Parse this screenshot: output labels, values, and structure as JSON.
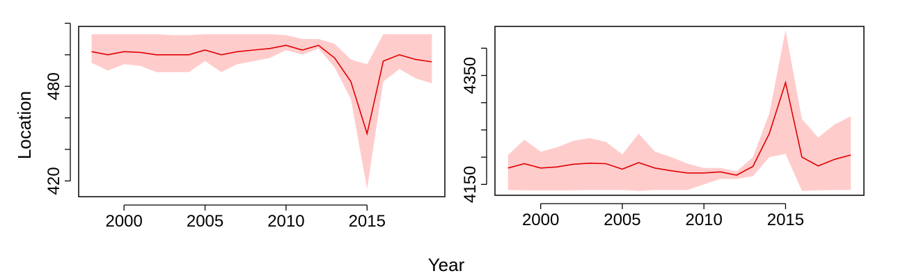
{
  "xlabel": "Year",
  "ylabel": "Location",
  "colors": {
    "band": "#ffcccc",
    "line": "#e00000",
    "axis": "#000000"
  },
  "chart_data": [
    {
      "type": "line",
      "title": "",
      "xlabel": "",
      "ylabel": "",
      "xlim": [
        1997.2,
        2019.8
      ],
      "ylim": [
        410,
        518
      ],
      "xticks": [
        2000,
        2005,
        2010,
        2015
      ],
      "xtick_labels": [
        "2000",
        "2005",
        "2010",
        "2015"
      ],
      "yticks": [
        420,
        440,
        460,
        480,
        500,
        520
      ],
      "ytick_labels": [
        "420",
        "",
        "",
        "480",
        "",
        ""
      ],
      "series": [
        {
          "x": [
            1998,
            1999,
            2000,
            2001,
            2002,
            2003,
            2004,
            2005,
            2006,
            2007,
            2008,
            2009,
            2010,
            2011,
            2012,
            2013,
            2014,
            2015,
            2016,
            2017,
            2018,
            2019
          ],
          "y": [
            502,
            500,
            502,
            501.5,
            500,
            500,
            500,
            503,
            500,
            502,
            503,
            504,
            506,
            503,
            506,
            498,
            483,
            450,
            496,
            500,
            497,
            495.5
          ],
          "lower": [
            495,
            490,
            494,
            493,
            489,
            489,
            489,
            496,
            489,
            494,
            496,
            498,
            503,
            500,
            504,
            492,
            472,
            415,
            483,
            491,
            485,
            482
          ],
          "upper": [
            513,
            513,
            513,
            513,
            513,
            512.5,
            512.5,
            513,
            513,
            513,
            513,
            513,
            512.5,
            510,
            510,
            507,
            497,
            494,
            513,
            513,
            513,
            513
          ]
        }
      ],
      "grid": false,
      "legend": "none"
    },
    {
      "type": "line",
      "title": "",
      "xlabel": "",
      "ylabel": "",
      "xlim": [
        1997.2,
        2019.8
      ],
      "ylim": [
        4130,
        4440
      ],
      "xticks": [
        2000,
        2005,
        2010,
        2015
      ],
      "xtick_labels": [
        "2000",
        "2005",
        "2010",
        "2015"
      ],
      "yticks": [
        4150,
        4200,
        4250,
        4300,
        4350,
        4400
      ],
      "ytick_labels": [
        "4150",
        "",
        "",
        "",
        "4350",
        ""
      ],
      "series": [
        {
          "x": [
            1998,
            1999,
            2000,
            2001,
            2002,
            2003,
            2004,
            2005,
            2006,
            2007,
            2008,
            2009,
            2010,
            2011,
            2012,
            2013,
            2014,
            2015,
            2016,
            2017,
            2018,
            2019
          ],
          "y": [
            4180,
            4188,
            4180,
            4182,
            4187,
            4189,
            4188,
            4178,
            4190,
            4180,
            4175,
            4171,
            4171,
            4173,
            4167,
            4183,
            4243,
            4337,
            4200,
            4184,
            4196,
            4204
          ],
          "lower": [
            4140,
            4139,
            4139,
            4139,
            4139,
            4140,
            4140,
            4140,
            4138,
            4140,
            4140,
            4140,
            4150,
            4160,
            4160,
            4165,
            4200,
            4206,
            4138,
            4139,
            4140,
            4140
          ],
          "upper": [
            4204,
            4232,
            4210,
            4218,
            4230,
            4235,
            4228,
            4205,
            4243,
            4210,
            4200,
            4188,
            4180,
            4180,
            4174,
            4200,
            4280,
            4433,
            4270,
            4236,
            4260,
            4275
          ]
        }
      ],
      "grid": false,
      "legend": "none"
    }
  ]
}
